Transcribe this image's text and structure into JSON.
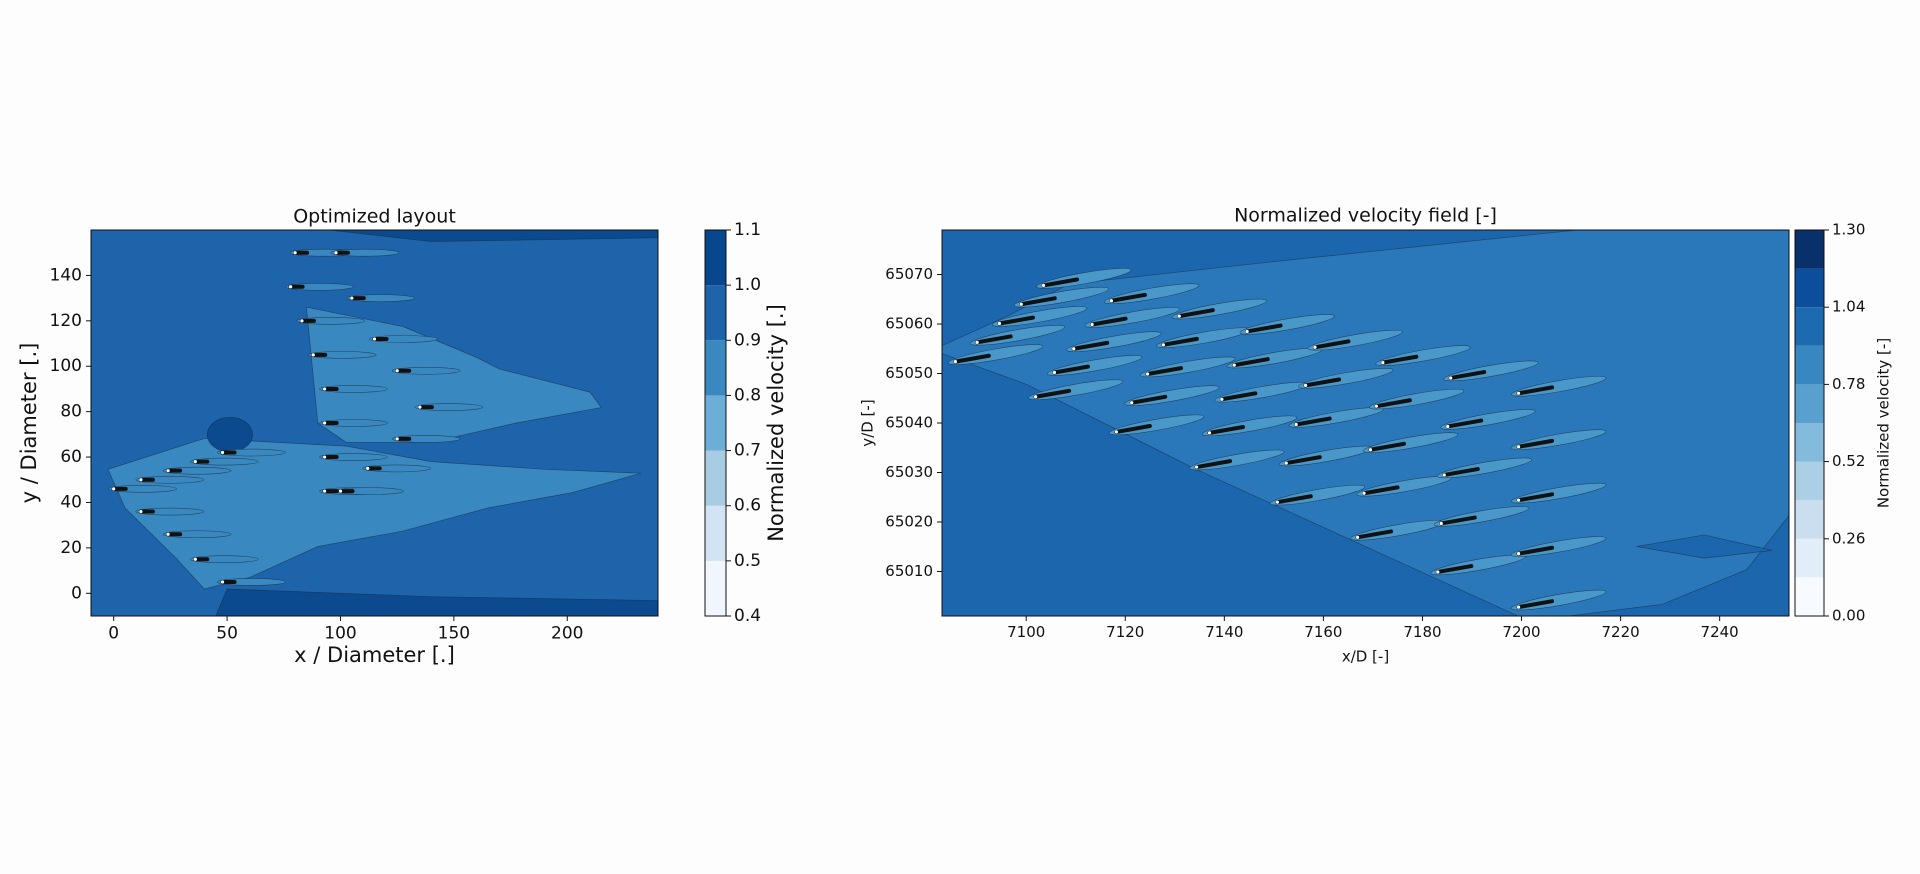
{
  "chart_data": [
    {
      "type": "contour",
      "title": "Optimized layout",
      "xlabel": "x / Diameter [.]",
      "ylabel": "y / Diameter [.]",
      "xlim": [
        -10,
        240
      ],
      "ylim": [
        -10,
        160
      ],
      "xticks": [
        0,
        50,
        100,
        150,
        200
      ],
      "yticks": [
        0,
        20,
        40,
        60,
        80,
        100,
        120,
        140
      ],
      "colorbar": {
        "label": "Normalized velocity [.]",
        "levels": [
          0.4,
          0.5,
          0.6,
          0.7,
          0.8,
          0.9,
          1.0,
          1.1
        ],
        "colors": [
          "#f0f6fc",
          "#d2e3f3",
          "#a8cde3",
          "#6caed6",
          "#3a88c0",
          "#1d64ab",
          "#08468d"
        ],
        "ticks": [
          0.4,
          0.5,
          0.6,
          0.7,
          0.8,
          0.9,
          {
            "value": 1.0,
            "label": "1.0"
          },
          1.1
        ]
      },
      "turbines": {
        "color": "#111111",
        "x": [
          0,
          12,
          24,
          36,
          48,
          12,
          24,
          36,
          48,
          80,
          78,
          83,
          88,
          93,
          93,
          93,
          93,
          98,
          105,
          115,
          125,
          135,
          125,
          112,
          100
        ],
        "y": [
          46,
          50,
          54,
          58,
          62,
          36,
          26,
          15,
          5,
          150,
          135,
          120,
          105,
          90,
          75,
          60,
          45,
          150,
          130,
          112,
          98,
          82,
          68,
          55,
          45
        ]
      }
    },
    {
      "type": "contour",
      "title": "Normalized velocity field [-]",
      "xlabel": "x/D [-]",
      "ylabel": "y/D [-]",
      "xlim": [
        7083,
        7254
      ],
      "ylim": [
        65001,
        65079
      ],
      "xticks": [
        7100,
        7120,
        7140,
        7160,
        7180,
        7200,
        7220,
        7240
      ],
      "yticks": [
        65010,
        65020,
        65030,
        65040,
        65050,
        65060,
        65070
      ],
      "colorbar": {
        "label": "Normalized velocity [-]",
        "levels": [
          0,
          0.13,
          0.26,
          0.39,
          0.52,
          0.65,
          0.78,
          0.91,
          1.04,
          1.17,
          1.3
        ],
        "colors": [
          "#f7fbff",
          "#e1edf8",
          "#cadef0",
          "#abd0e6",
          "#82bbdb",
          "#58a1ce",
          "#3787c0",
          "#1c6aaf",
          "#0b4f9c",
          "#08306b"
        ],
        "ticks": [
          {
            "value": 0,
            "label": "0.00"
          },
          0.26,
          0.52,
          0.78,
          1.04,
          {
            "value": 1.3,
            "label": "1.30"
          }
        ]
      },
      "turbines": {
        "color": "#111111",
        "x": [
          7085.7,
          7101.9,
          7118.2,
          7134.4,
          7150.7,
          7166.9,
          7183.1,
          7199.4,
          7090.1,
          7105.7,
          7121.3,
          7137.0,
          7152.5,
          7168.2,
          7183.8,
          7199.4,
          7094.6,
          7109.6,
          7124.5,
          7139.5,
          7154.5,
          7169.5,
          7184.4,
          7199.4,
          7099.0,
          7113.3,
          7127.7,
          7142.0,
          7156.4,
          7170.7,
          7185.1,
          7199.4,
          7103.5,
          7117.2,
          7130.9,
          7144.6,
          7158.3,
          7172.0,
          7185.7,
          7199.4
        ],
        "y": [
          65052.4,
          65045.3,
          65038.2,
          65031.1,
          65024.0,
          65016.9,
          65009.9,
          65002.8,
          65056.3,
          65050.2,
          65044.1,
          65038.0,
          65031.9,
          65025.8,
          65019.7,
          65013.6,
          65060.1,
          65055.0,
          65049.9,
          65044.8,
          65039.7,
          65034.6,
          65029.5,
          65024.4,
          65064.0,
          65059.9,
          65055.8,
          65051.7,
          65047.6,
          65043.4,
          65039.3,
          65035.2,
          65067.8,
          65064.7,
          65061.6,
          65058.5,
          65055.3,
          65052.2,
          65049.1,
          65046.0
        ]
      }
    }
  ]
}
